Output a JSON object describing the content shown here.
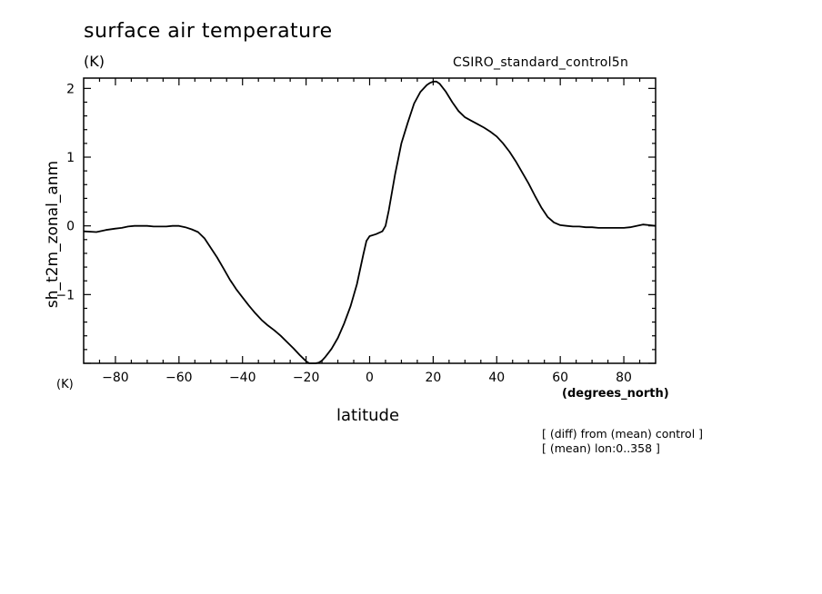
{
  "chart_data": {
    "type": "line",
    "title": "surface air temperature",
    "units": "(K)",
    "units_bottom": "(K)",
    "run_name": "CSIRO_standard_control5n",
    "xlabel": "latitude",
    "xunits": "(degrees_north)",
    "ylabel": "sh_t2m_zonal_anm",
    "annotations": [
      "[ (diff) from (mean) control ]",
      "[ (mean) lon:0..358 ]"
    ],
    "xlim": [
      -90,
      90
    ],
    "ylim": [
      -2,
      2.15
    ],
    "xticks": [
      -80,
      -60,
      -40,
      -20,
      0,
      20,
      40,
      60,
      80
    ],
    "xtick_labels": [
      "−80",
      "−60",
      "−40",
      "−20",
      "0",
      "20",
      "40",
      "60",
      "80"
    ],
    "yticks": [
      -1,
      0,
      1,
      2
    ],
    "ytick_labels": [
      "−1",
      "0",
      "1",
      "2"
    ],
    "series": [
      {
        "name": "sh_t2m_zonal_anm",
        "x": [
          -90,
          -86,
          -83,
          -80,
          -78,
          -76,
          -74,
          -72,
          -70,
          -68,
          -66,
          -64,
          -62,
          -60,
          -58,
          -56,
          -54,
          -52,
          -50,
          -48,
          -46,
          -44,
          -42,
          -40,
          -38,
          -36,
          -34,
          -32,
          -30,
          -28,
          -26,
          -24,
          -22,
          -20,
          -19,
          -18,
          -17,
          -16,
          -15,
          -14,
          -13,
          -12,
          -10,
          -8,
          -6,
          -4,
          -2,
          -1,
          0,
          2,
          4,
          5,
          6,
          8,
          10,
          12,
          14,
          16,
          18,
          19,
          20,
          21,
          22,
          24,
          26,
          28,
          30,
          32,
          34,
          36,
          38,
          40,
          42,
          44,
          46,
          48,
          50,
          52,
          54,
          56,
          58,
          60,
          62,
          64,
          66,
          68,
          70,
          72,
          74,
          76,
          78,
          80,
          82,
          84,
          86,
          88,
          90
        ],
        "y": [
          -0.08,
          -0.09,
          -0.06,
          -0.04,
          -0.03,
          -0.01,
          0.0,
          0.0,
          0.0,
          -0.01,
          -0.01,
          -0.01,
          0.0,
          0.0,
          -0.02,
          -0.05,
          -0.09,
          -0.18,
          -0.32,
          -0.46,
          -0.62,
          -0.78,
          -0.92,
          -1.04,
          -1.16,
          -1.27,
          -1.37,
          -1.45,
          -1.52,
          -1.6,
          -1.69,
          -1.78,
          -1.88,
          -1.97,
          -2.0,
          -2.02,
          -2.01,
          -1.99,
          -1.96,
          -1.91,
          -1.85,
          -1.79,
          -1.63,
          -1.42,
          -1.17,
          -0.85,
          -0.42,
          -0.22,
          -0.15,
          -0.12,
          -0.08,
          0.0,
          0.22,
          0.75,
          1.2,
          1.5,
          1.78,
          1.95,
          2.05,
          2.08,
          2.1,
          2.1,
          2.07,
          1.95,
          1.8,
          1.67,
          1.58,
          1.53,
          1.48,
          1.43,
          1.37,
          1.3,
          1.2,
          1.08,
          0.94,
          0.78,
          0.62,
          0.44,
          0.27,
          0.13,
          0.05,
          0.01,
          0.0,
          -0.01,
          -0.01,
          -0.02,
          -0.02,
          -0.03,
          -0.03,
          -0.03,
          -0.03,
          -0.03,
          -0.02,
          0.0,
          0.02,
          0.01,
          0.0
        ]
      }
    ]
  }
}
